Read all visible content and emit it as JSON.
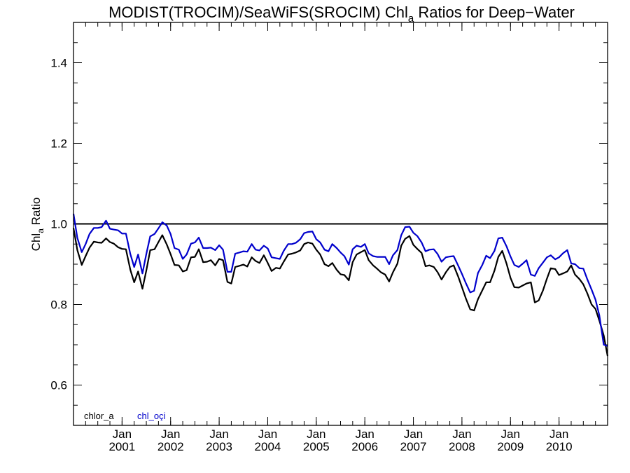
{
  "chart_data": {
    "type": "line",
    "title": "MODIST(TROCIM)/SeaWiFS(SROCIM)  Chl",
    "title_sub": "a",
    "title_tail": " Ratios for Deep−Water",
    "ylabel": "Chl",
    "ylabel_sub": "a",
    "ylabel_tail": " Ratio",
    "xlabel": "",
    "xlim": [
      2000.0,
      2011.0
    ],
    "ylim": [
      0.5,
      1.5
    ],
    "yticks": [
      0.6,
      0.8,
      1.0,
      1.2,
      1.4
    ],
    "ytick_labels": [
      "0.6",
      "0.8",
      "1.0",
      "1.2",
      "1.4"
    ],
    "xticks": [
      2001.0,
      2002.0,
      2003.0,
      2004.0,
      2005.0,
      2006.0,
      2007.0,
      2008.0,
      2009.0,
      2010.0
    ],
    "xtick_labels_top": [
      "Jan",
      "Jan",
      "Jan",
      "Jan",
      "Jan",
      "Jan",
      "Jan",
      "Jan",
      "Jan",
      "Jan"
    ],
    "xtick_labels_bottom": [
      "2001",
      "2002",
      "2003",
      "2004",
      "2005",
      "2006",
      "2007",
      "2008",
      "2009",
      "2010"
    ],
    "reference_line": 1.0,
    "legend_position": "bottom-left",
    "series": [
      {
        "name": "chlor_a",
        "color": "#000000",
        "x": [
          2000.0,
          2000.08,
          2000.17,
          2000.25,
          2000.33,
          2000.42,
          2000.5,
          2000.58,
          2000.67,
          2000.75,
          2000.83,
          2000.92,
          2001.0,
          2001.08,
          2001.17,
          2001.25,
          2001.33,
          2001.42,
          2001.5,
          2001.58,
          2001.67,
          2001.75,
          2001.83,
          2001.92,
          2002.0,
          2002.08,
          2002.17,
          2002.25,
          2002.33,
          2002.42,
          2002.5,
          2002.58,
          2002.67,
          2002.75,
          2002.83,
          2002.92,
          2003.0,
          2003.08,
          2003.17,
          2003.25,
          2003.33,
          2003.42,
          2003.5,
          2003.58,
          2003.67,
          2003.75,
          2003.83,
          2003.92,
          2004.0,
          2004.08,
          2004.17,
          2004.25,
          2004.33,
          2004.42,
          2004.5,
          2004.58,
          2004.67,
          2004.75,
          2004.83,
          2004.92,
          2005.0,
          2005.08,
          2005.17,
          2005.25,
          2005.33,
          2005.42,
          2005.5,
          2005.58,
          2005.67,
          2005.75,
          2005.83,
          2005.92,
          2006.0,
          2006.08,
          2006.17,
          2006.25,
          2006.33,
          2006.42,
          2006.5,
          2006.58,
          2006.67,
          2006.75,
          2006.83,
          2006.92,
          2007.0,
          2007.08,
          2007.17,
          2007.25,
          2007.33,
          2007.42,
          2007.5,
          2007.58,
          2007.67,
          2007.75,
          2007.83,
          2007.92,
          2008.0,
          2008.08,
          2008.17,
          2008.25,
          2008.33,
          2008.42,
          2008.5,
          2008.58,
          2008.67,
          2008.75,
          2008.83,
          2008.92,
          2009.0,
          2009.08,
          2009.17,
          2009.25,
          2009.33,
          2009.42,
          2009.5,
          2009.58,
          2009.67,
          2009.75,
          2009.83,
          2009.92,
          2010.0,
          2010.08,
          2010.17,
          2010.25,
          2010.33,
          2010.42,
          2010.5,
          2010.58,
          2010.67,
          2010.75,
          2010.83,
          2010.92,
          2011.0
        ],
        "y": [
          0.99,
          0.935,
          0.898,
          0.92,
          0.941,
          0.956,
          0.954,
          0.953,
          0.964,
          0.955,
          0.951,
          0.942,
          0.938,
          0.937,
          0.886,
          0.855,
          0.882,
          0.839,
          0.884,
          0.935,
          0.937,
          0.955,
          0.972,
          0.949,
          0.925,
          0.898,
          0.897,
          0.882,
          0.885,
          0.917,
          0.918,
          0.937,
          0.905,
          0.906,
          0.91,
          0.897,
          0.913,
          0.91,
          0.856,
          0.852,
          0.893,
          0.896,
          0.899,
          0.894,
          0.917,
          0.908,
          0.903,
          0.922,
          0.903,
          0.883,
          0.891,
          0.889,
          0.906,
          0.924,
          0.926,
          0.929,
          0.934,
          0.95,
          0.954,
          0.951,
          0.936,
          0.924,
          0.9,
          0.895,
          0.903,
          0.886,
          0.875,
          0.873,
          0.86,
          0.905,
          0.924,
          0.93,
          0.935,
          0.91,
          0.897,
          0.889,
          0.88,
          0.874,
          0.857,
          0.88,
          0.901,
          0.946,
          0.963,
          0.97,
          0.948,
          0.938,
          0.928,
          0.895,
          0.897,
          0.893,
          0.88,
          0.862,
          0.88,
          0.893,
          0.897,
          0.87,
          0.843,
          0.815,
          0.788,
          0.785,
          0.813,
          0.835,
          0.855,
          0.855,
          0.884,
          0.918,
          0.933,
          0.901,
          0.866,
          0.843,
          0.842,
          0.847,
          0.852,
          0.855,
          0.805,
          0.81,
          0.835,
          0.864,
          0.89,
          0.888,
          0.873,
          0.877,
          0.882,
          0.897,
          0.874,
          0.863,
          0.85,
          0.828,
          0.8,
          0.789,
          0.76,
          0.723,
          0.672
        ]
      },
      {
        "name": "chl_oçi",
        "color": "#0000cc",
        "x": [
          2000.0,
          2000.08,
          2000.17,
          2000.25,
          2000.33,
          2000.42,
          2000.5,
          2000.58,
          2000.67,
          2000.75,
          2000.83,
          2000.92,
          2001.0,
          2001.08,
          2001.17,
          2001.25,
          2001.33,
          2001.42,
          2001.5,
          2001.58,
          2001.67,
          2001.75,
          2001.83,
          2001.92,
          2002.0,
          2002.08,
          2002.17,
          2002.25,
          2002.33,
          2002.42,
          2002.5,
          2002.58,
          2002.67,
          2002.75,
          2002.83,
          2002.92,
          2003.0,
          2003.08,
          2003.17,
          2003.25,
          2003.33,
          2003.42,
          2003.5,
          2003.58,
          2003.67,
          2003.75,
          2003.83,
          2003.92,
          2004.0,
          2004.08,
          2004.17,
          2004.25,
          2004.33,
          2004.42,
          2004.5,
          2004.58,
          2004.67,
          2004.75,
          2004.83,
          2004.92,
          2005.0,
          2005.08,
          2005.17,
          2005.25,
          2005.33,
          2005.42,
          2005.5,
          2005.58,
          2005.67,
          2005.75,
          2005.83,
          2005.92,
          2006.0,
          2006.08,
          2006.17,
          2006.25,
          2006.33,
          2006.42,
          2006.5,
          2006.58,
          2006.67,
          2006.75,
          2006.83,
          2006.92,
          2007.0,
          2007.08,
          2007.17,
          2007.25,
          2007.33,
          2007.42,
          2007.5,
          2007.58,
          2007.67,
          2007.75,
          2007.83,
          2007.92,
          2008.0,
          2008.08,
          2008.17,
          2008.25,
          2008.33,
          2008.42,
          2008.5,
          2008.58,
          2008.67,
          2008.75,
          2008.83,
          2008.92,
          2009.0,
          2009.08,
          2009.17,
          2009.25,
          2009.33,
          2009.42,
          2009.5,
          2009.58,
          2009.67,
          2009.75,
          2009.83,
          2009.92,
          2010.0,
          2010.08,
          2010.17,
          2010.25,
          2010.33,
          2010.42,
          2010.5,
          2010.58,
          2010.67,
          2010.75,
          2010.83,
          2010.92,
          2011.0
        ],
        "y": [
          1.025,
          0.965,
          0.93,
          0.95,
          0.975,
          0.99,
          0.99,
          0.992,
          1.008,
          0.988,
          0.986,
          0.984,
          0.976,
          0.976,
          0.925,
          0.893,
          0.924,
          0.877,
          0.925,
          0.969,
          0.975,
          0.989,
          1.004,
          0.996,
          0.975,
          0.94,
          0.936,
          0.913,
          0.924,
          0.951,
          0.954,
          0.966,
          0.94,
          0.94,
          0.941,
          0.935,
          0.947,
          0.936,
          0.881,
          0.881,
          0.926,
          0.929,
          0.932,
          0.931,
          0.95,
          0.936,
          0.934,
          0.946,
          0.939,
          0.917,
          0.915,
          0.913,
          0.933,
          0.95,
          0.95,
          0.953,
          0.962,
          0.977,
          0.98,
          0.981,
          0.962,
          0.954,
          0.936,
          0.932,
          0.95,
          0.94,
          0.929,
          0.92,
          0.899,
          0.937,
          0.946,
          0.943,
          0.95,
          0.927,
          0.92,
          0.918,
          0.918,
          0.918,
          0.9,
          0.922,
          0.935,
          0.972,
          0.992,
          0.993,
          0.978,
          0.97,
          0.954,
          0.932,
          0.936,
          0.937,
          0.925,
          0.906,
          0.917,
          0.919,
          0.92,
          0.897,
          0.876,
          0.853,
          0.83,
          0.834,
          0.878,
          0.898,
          0.921,
          0.915,
          0.933,
          0.964,
          0.966,
          0.944,
          0.919,
          0.898,
          0.893,
          0.901,
          0.91,
          0.874,
          0.871,
          0.89,
          0.904,
          0.917,
          0.922,
          0.912,
          0.917,
          0.927,
          0.935,
          0.902,
          0.9,
          0.89,
          0.889,
          0.863,
          0.837,
          0.812,
          0.773,
          0.7,
          0.697
        ]
      }
    ]
  }
}
